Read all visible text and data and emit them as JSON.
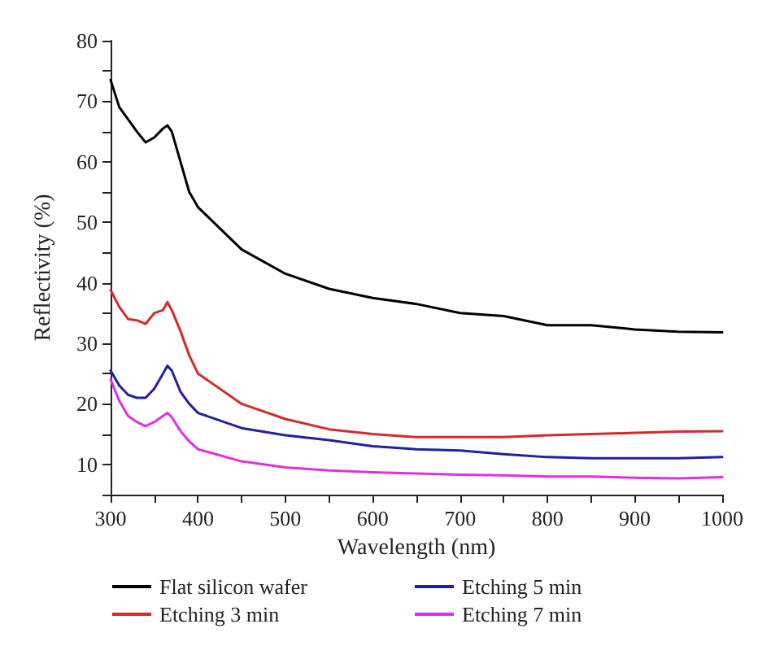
{
  "chart_data": {
    "type": "line",
    "xlabel": "Wavelength (nm)",
    "ylabel": "Reflectivity (%)",
    "xlim": [
      300,
      1000
    ],
    "ylim": [
      5,
      80
    ],
    "xticks": [
      300,
      {
        "value": 350,
        "label": null
      },
      400,
      {
        "value": 450,
        "label": null
      },
      500,
      {
        "value": 550,
        "label": null
      },
      600,
      {
        "value": 650,
        "label": null
      },
      700,
      {
        "value": 750,
        "label": null
      },
      800,
      {
        "value": 850,
        "label": null
      },
      900,
      {
        "value": 950,
        "label": null
      },
      1000
    ],
    "yticks": [
      {
        "value": 5,
        "label": null
      },
      10,
      {
        "value": 15,
        "label": null
      },
      20,
      {
        "value": 25,
        "label": null
      },
      30,
      {
        "value": 35,
        "label": null
      },
      40,
      {
        "value": 45,
        "label": null
      },
      50,
      {
        "value": 55,
        "label": null
      },
      60,
      {
        "value": 65,
        "label": null
      },
      70,
      {
        "value": 75,
        "label": null
      },
      80
    ],
    "x": [
      300,
      310,
      320,
      330,
      340,
      350,
      360,
      365,
      370,
      380,
      390,
      400,
      450,
      500,
      550,
      600,
      650,
      700,
      750,
      800,
      850,
      900,
      950,
      1000
    ],
    "series": [
      {
        "name": "Flat silicon wafer",
        "color": "#000000",
        "values": [
          73.5,
          69,
          67,
          65,
          63.2,
          64,
          65.5,
          66,
          65,
          60,
          55,
          52.5,
          45.5,
          41.5,
          39,
          37.5,
          36.5,
          35,
          34.5,
          33,
          33,
          32.3,
          31.9,
          31.8
        ]
      },
      {
        "name": "Etching 3 min",
        "color": "#d42a2a",
        "values": [
          38.8,
          36,
          34,
          33.8,
          33.2,
          35,
          35.5,
          36.8,
          35.5,
          32,
          28,
          25,
          20,
          17.5,
          15.8,
          15,
          14.5,
          14.5,
          14.5,
          14.8,
          15,
          15.2,
          15.4,
          15.5
        ]
      },
      {
        "name": "Etching 5 min",
        "color": "#2020a0",
        "values": [
          25.5,
          23,
          21.5,
          21,
          21,
          22.5,
          25,
          26.3,
          25.5,
          22,
          20,
          18.5,
          16,
          14.8,
          14,
          13,
          12.5,
          12.3,
          11.7,
          11.2,
          11,
          11,
          11,
          11.2
        ]
      },
      {
        "name": "Etching 7 min",
        "color": "#e030e0",
        "values": [
          24,
          20.5,
          18,
          17,
          16.3,
          17,
          18,
          18.5,
          17.8,
          15.5,
          13.8,
          12.5,
          10.5,
          9.5,
          9,
          8.7,
          8.5,
          8.3,
          8.2,
          8,
          8,
          7.8,
          7.7,
          7.9
        ]
      }
    ],
    "legend": "bottom",
    "grid": false,
    "marker": "none",
    "line_style": "solid"
  }
}
